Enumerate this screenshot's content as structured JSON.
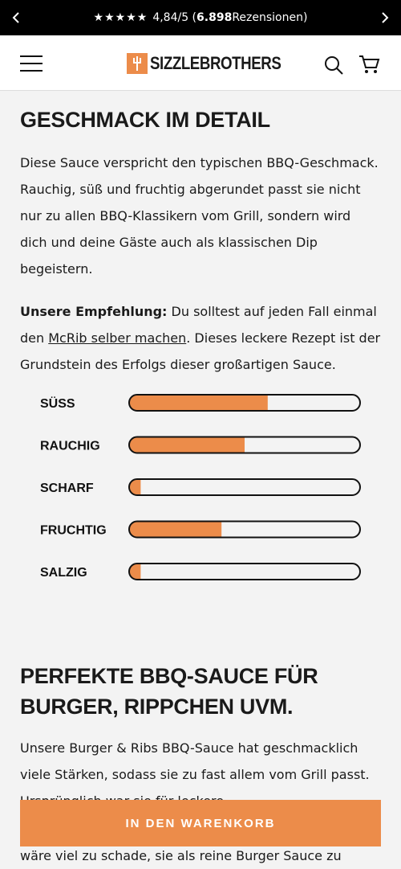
{
  "announcement": {
    "rating": "4,84/5 (",
    "count": "6.898",
    "suffix": " Rezensionen)"
  },
  "header": {
    "logo": "SIZZLEBROTHERS"
  },
  "section1": {
    "title": "GESCHMACK IM DETAIL",
    "paragraph1": "Diese Sauce verspricht den typischen BBQ-Geschmack. Rauchig, süß und fruchtig abgerundet passt sie nicht nur zu allen BBQ-Klassikern vom Grill, sondern wird dich und deine Gäste auch als klassischen Dip begeistern.",
    "recommendation_label": "Unsere Empfehlung:",
    "recommendation_before": " Du solltest auf jeden Fall einmal den ",
    "recommendation_link": "McRib selber machen",
    "recommendation_after": ". Dieses leckere Rezept ist der Grundstein des Erfolgs dieser großartigen Sauce."
  },
  "taste_profile": {
    "range": [
      0,
      100
    ],
    "color": "#ec8c4a",
    "categories": [
      "SÜSS",
      "RAUCHIG",
      "SCHARF",
      "FRUCHTIG",
      "SALZIG"
    ],
    "values": [
      60,
      50,
      5,
      40,
      5
    ]
  },
  "section2": {
    "title": "PERFEKTE BBQ-SAUCE FÜR BURGER, RIPPCHEN UVM.",
    "paragraph_visible": "Unsere Burger & Ribs BBQ-Sauce hat geschmacklich viele Stärken, sodass sie zu fast allem vom Grill passt. Ursprünglich war sie für leckere",
    "paragraph_end": "wäre viel zu schade, sie als reine Burger Sauce zu"
  },
  "cart_button": "IN DEN WARENKORB"
}
